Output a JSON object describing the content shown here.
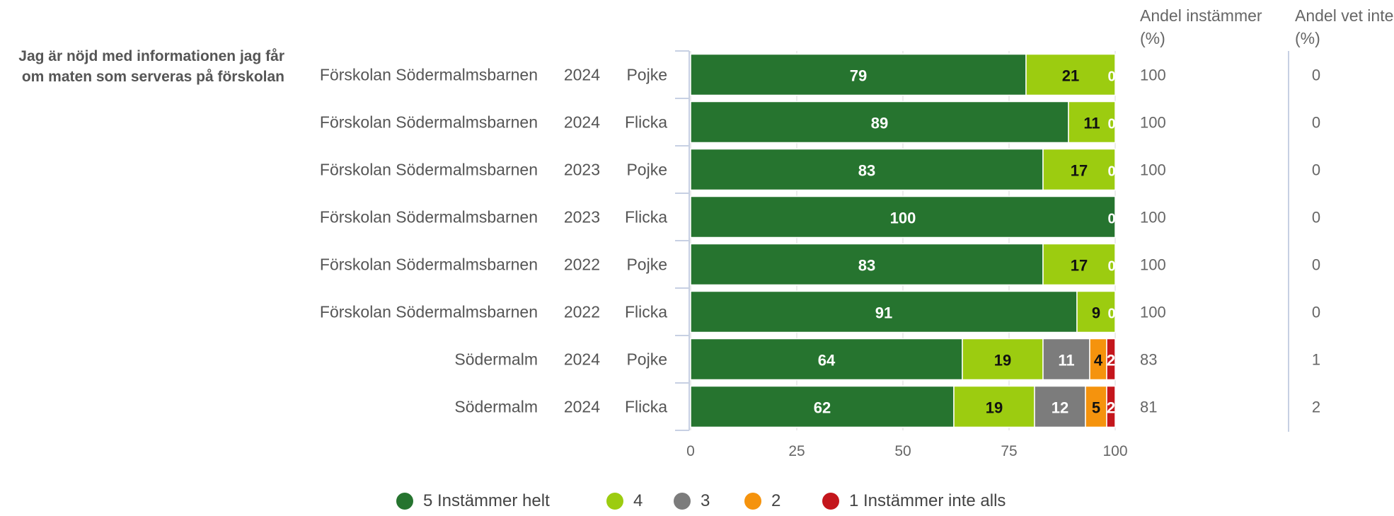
{
  "question": "Jag är nöjd med informationen jag får om maten som serveras på förskolan",
  "columns": {
    "andel_instammer_header": "Andel instämmer (%)",
    "andel_vet_inte_header": "Andel vet inte (%)"
  },
  "colors": {
    "5": "#26742f",
    "4": "#9ccc10",
    "3": "#7c7c7c",
    "2": "#f5930d",
    "1": "#c4161c"
  },
  "legend": [
    {
      "key": "5",
      "label": "5 Instämmer helt"
    },
    {
      "key": "4",
      "label": "4"
    },
    {
      "key": "3",
      "label": "3"
    },
    {
      "key": "2",
      "label": "2"
    },
    {
      "key": "1",
      "label": "1 Instämmer inte alls"
    }
  ],
  "chart_data": {
    "type": "bar",
    "orientation": "horizontal",
    "stacked": true,
    "xlim": [
      0,
      100
    ],
    "xticks": [
      "0",
      "25",
      "50",
      "75",
      "100"
    ],
    "categories": [
      {
        "unit": "Förskolan Södermalmsbarnen",
        "year": "2024",
        "gender": "Pojke",
        "andel_instammer": "100",
        "andel_vet_inte": "0"
      },
      {
        "unit": "Förskolan Södermalmsbarnen",
        "year": "2024",
        "gender": "Flicka",
        "andel_instammer": "100",
        "andel_vet_inte": "0"
      },
      {
        "unit": "Förskolan Södermalmsbarnen",
        "year": "2023",
        "gender": "Pojke",
        "andel_instammer": "100",
        "andel_vet_inte": "0"
      },
      {
        "unit": "Förskolan Södermalmsbarnen",
        "year": "2023",
        "gender": "Flicka",
        "andel_instammer": "100",
        "andel_vet_inte": "0"
      },
      {
        "unit": "Förskolan Södermalmsbarnen",
        "year": "2022",
        "gender": "Pojke",
        "andel_instammer": "100",
        "andel_vet_inte": "0"
      },
      {
        "unit": "Förskolan Södermalmsbarnen",
        "year": "2022",
        "gender": "Flicka",
        "andel_instammer": "100",
        "andel_vet_inte": "0"
      },
      {
        "unit": "Södermalm",
        "year": "2024",
        "gender": "Pojke",
        "andel_instammer": "83",
        "andel_vet_inte": "1"
      },
      {
        "unit": "Södermalm",
        "year": "2024",
        "gender": "Flicka",
        "andel_instammer": "81",
        "andel_vet_inte": "2"
      }
    ],
    "series": [
      {
        "name": "5 Instämmer helt",
        "key": "5",
        "values": [
          79,
          89,
          83,
          100,
          83,
          91,
          64,
          62
        ]
      },
      {
        "name": "4",
        "key": "4",
        "values": [
          21,
          11,
          17,
          0,
          17,
          9,
          19,
          19
        ]
      },
      {
        "name": "3",
        "key": "3",
        "values": [
          0,
          0,
          0,
          0,
          0,
          0,
          11,
          12
        ]
      },
      {
        "name": "2",
        "key": "2",
        "values": [
          0,
          0,
          0,
          0,
          0,
          0,
          4,
          5
        ]
      },
      {
        "name": "1 Instämmer inte alls",
        "key": "1",
        "values": [
          0,
          0,
          0,
          0,
          0,
          0,
          2,
          2
        ]
      }
    ]
  }
}
